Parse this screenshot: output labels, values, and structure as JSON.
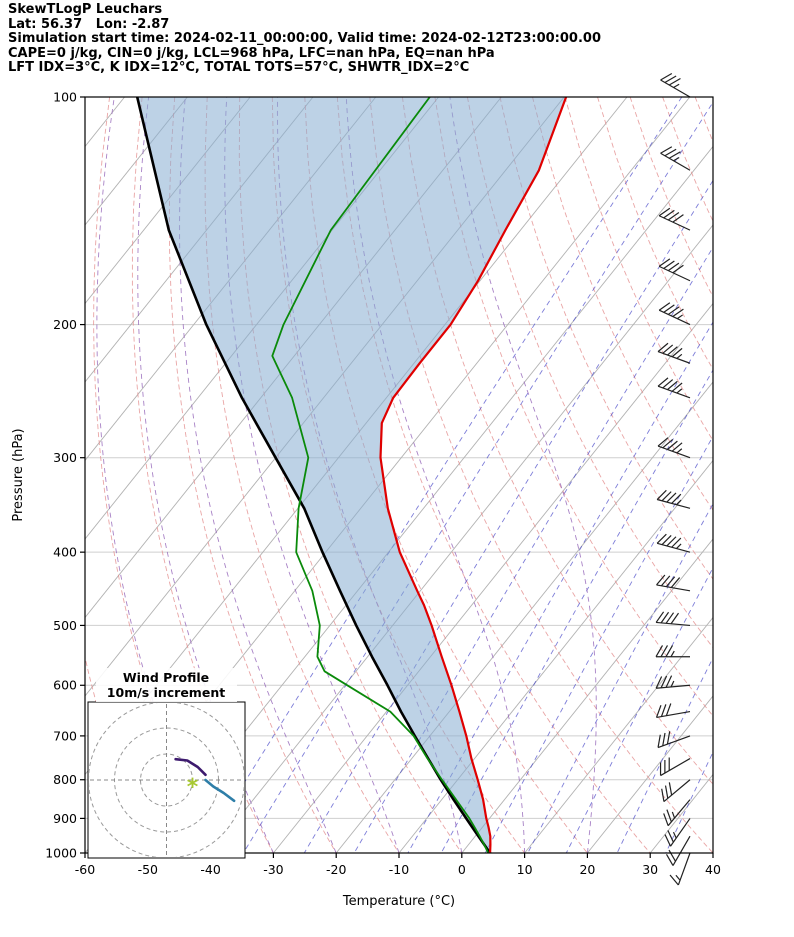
{
  "header": {
    "line1": "SkewTLogP Leuchars",
    "line2": "Lat: 56.37   Lon: -2.87",
    "line3": "Simulation start time: 2024-02-11_00:00:00, Valid time: 2024-02-12T23:00:00.00",
    "line4": "CAPE=0 j/kg, CIN=0 j/kg, LCL=968 hPa, LFC=nan hPa, EQ=nan hPa",
    "line5": "LFT IDX=3°C, K IDX=12°C, TOTAL TOTS=57°C, SHWTR_IDX=2°C"
  },
  "chart_data": {
    "type": "skewt-logp",
    "station": "Leuchars",
    "xlabel": "Temperature (°C)",
    "ylabel": "Pressure (hPa)",
    "xlim": [
      -60,
      40
    ],
    "plim": [
      100,
      1000
    ],
    "skew": 0.8,
    "x_ticks": [
      -60,
      -50,
      -40,
      -30,
      -20,
      -10,
      0,
      10,
      20,
      30,
      40
    ],
    "p_ticks": [
      100,
      200,
      300,
      400,
      500,
      600,
      700,
      800,
      900,
      1000
    ],
    "temperature_profile": {
      "pressure": [
        1000,
        975,
        950,
        925,
        900,
        850,
        800,
        750,
        700,
        650,
        600,
        550,
        500,
        470,
        450,
        400,
        350,
        300,
        270,
        250,
        225,
        200,
        175,
        150,
        125,
        100
      ],
      "temp_c": [
        4.5,
        3.5,
        2.4,
        1.0,
        -0.5,
        -3.4,
        -6.8,
        -10.5,
        -14.2,
        -18.4,
        -23.0,
        -28.2,
        -33.8,
        -37.6,
        -40.5,
        -48.2,
        -55.7,
        -63.3,
        -67.5,
        -68.9,
        -69.1,
        -69.1,
        -70.3,
        -72.4,
        -74.7,
        -79.7
      ]
    },
    "dewpoint_profile": {
      "pressure": [
        1000,
        975,
        950,
        925,
        900,
        850,
        800,
        750,
        700,
        650,
        600,
        575,
        550,
        500,
        450,
        400,
        350,
        300,
        250,
        220,
        200,
        150,
        100
      ],
      "temp_c": [
        4.2,
        2.5,
        0.7,
        -1.2,
        -3.2,
        -7.7,
        -12.5,
        -17.5,
        -22.6,
        -29.4,
        -39.6,
        -45.0,
        -48.0,
        -51.6,
        -57.2,
        -64.7,
        -69.9,
        -74.8,
        -85.0,
        -93.5,
        -95.7,
        -100.2,
        -101.4
      ]
    },
    "parcel_profile": {
      "pressure": [
        1000,
        950,
        900,
        850,
        800,
        750,
        700,
        650,
        600,
        550,
        500,
        450,
        400,
        350,
        300,
        250,
        200,
        150,
        100
      ],
      "temp_c": [
        4.5,
        0.5,
        -3.7,
        -8.1,
        -12.7,
        -17.4,
        -22.4,
        -27.7,
        -33.2,
        -39.3,
        -45.8,
        -52.8,
        -60.5,
        -69.0,
        -80.0,
        -93.0,
        -108.0,
        -126.0,
        -148.0
      ]
    },
    "winds": {
      "pressure": [
        1000,
        950,
        900,
        850,
        800,
        750,
        700,
        650,
        600,
        550,
        500,
        450,
        400,
        350,
        300,
        250,
        225,
        200,
        175,
        150,
        125,
        100
      ],
      "speed_kt": [
        15,
        20,
        25,
        25,
        28,
        30,
        30,
        32,
        35,
        35,
        40,
        40,
        45,
        45,
        45,
        45,
        45,
        45,
        40,
        40,
        35,
        35
      ],
      "direction_deg": [
        200,
        210,
        215,
        220,
        230,
        240,
        250,
        260,
        265,
        270,
        275,
        280,
        285,
        285,
        290,
        290,
        290,
        295,
        295,
        295,
        300,
        300
      ]
    },
    "background": {
      "isotherm_start": -150,
      "isotherm_end": 40,
      "isotherm_step": 10,
      "dry_adiabats_c": [
        -60,
        -50,
        -40,
        -30,
        -20,
        -10,
        0,
        10,
        20,
        30,
        40,
        50,
        60,
        70,
        80,
        90,
        100,
        110,
        120,
        130,
        140,
        150
      ],
      "moist_adiabats_c": [
        -40,
        -30,
        -20,
        -10,
        0,
        10,
        20
      ],
      "mixing_ratios_gkg": [
        0.1,
        0.2,
        0.5,
        1,
        2,
        3,
        5,
        8,
        12,
        20,
        32
      ]
    },
    "hodograph": {
      "title1": "Wind Profile",
      "title2": "10m/s increment",
      "rings_ms": [
        10,
        20,
        30
      ],
      "traces": [
        {
          "color": "#3d1a6e",
          "points_uv": [
            [
              3.5,
              8.0
            ],
            [
              8.0,
              7.5
            ],
            [
              12.0,
              5.0
            ],
            [
              15.0,
              2.0
            ]
          ]
        },
        {
          "color": "#2e7ea8",
          "points_uv": [
            [
              15.0,
              0.0
            ],
            [
              18.0,
              -2.5
            ],
            [
              22.0,
              -5.0
            ],
            [
              26.0,
              -8.0
            ]
          ]
        }
      ],
      "marker": {
        "u": 10.0,
        "v": -2.7,
        "symbol": "*",
        "color": "#a8c832"
      }
    },
    "colors": {
      "temperature": "#e00000",
      "dewpoint": "#0a8a0a",
      "parcel": "#000000",
      "shading": "#86add1",
      "isotherm": "#b3b3b3",
      "pressure_grid": "#cfcfcf",
      "dry_adiabat": "#e38e8e",
      "moist_adiabat": "#9263b8",
      "mixing_ratio": "#4646c8",
      "wind_barb": "#222222"
    }
  }
}
